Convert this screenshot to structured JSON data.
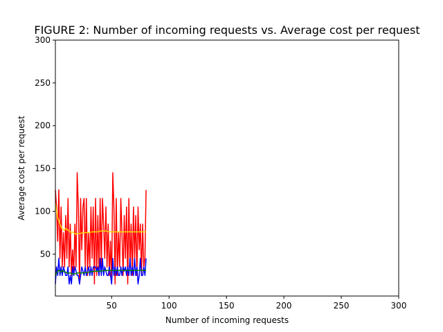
{
  "chart_data": {
    "type": "line",
    "title": "FIGURE 2: Number of incoming requests vs. Average cost per request",
    "xlabel": "Number of incoming requests",
    "ylabel": "Average cost per request",
    "xlim": [
      1,
      300
    ],
    "ylim": [
      1,
      300
    ],
    "xticks": [
      50,
      100,
      150,
      200,
      250,
      300
    ],
    "yticks": [
      50,
      100,
      150,
      200,
      250,
      300
    ],
    "grid": false,
    "legend": "none",
    "series": [
      {
        "color": "#ff0000",
        "x": [
          1,
          2,
          3,
          4,
          5,
          6,
          7,
          8,
          9,
          10,
          11,
          12,
          13,
          14,
          15,
          16,
          17,
          18,
          19,
          20,
          21,
          22,
          23,
          24,
          25,
          26,
          27,
          28,
          29,
          30,
          31,
          32,
          33,
          34,
          35,
          36,
          37,
          38,
          39,
          40,
          41,
          42,
          43,
          44,
          45,
          46,
          47,
          48,
          49,
          50,
          51,
          52,
          53,
          54,
          55,
          56,
          57,
          58,
          59,
          60,
          61,
          62,
          63,
          64,
          65,
          66,
          67,
          68,
          69,
          70,
          71,
          72,
          73,
          74,
          75,
          76,
          77,
          78,
          79,
          80
        ],
        "y": [
          125,
          105,
          65,
          125,
          45,
          105,
          35,
          75,
          35,
          95,
          45,
          115,
          35,
          85,
          25,
          55,
          25,
          85,
          35,
          145,
          105,
          15,
          115,
          55,
          105,
          115,
          35,
          115,
          25,
          75,
          35,
          105,
          45,
          105,
          15,
          115,
          25,
          95,
          25,
          115,
          35,
          115,
          85,
          45,
          105,
          35,
          85,
          25,
          65,
          15,
          145,
          105,
          15,
          115,
          25,
          75,
          35,
          115,
          75,
          25,
          95,
          45,
          105,
          15,
          115,
          35,
          85,
          25,
          105,
          45,
          95,
          25,
          105,
          55,
          85,
          25,
          85,
          35,
          45,
          125
        ]
      },
      {
        "color": "#0000ff",
        "x": [
          1,
          2,
          3,
          4,
          5,
          6,
          7,
          8,
          9,
          10,
          11,
          12,
          13,
          14,
          15,
          16,
          17,
          18,
          19,
          20,
          21,
          22,
          23,
          24,
          25,
          26,
          27,
          28,
          29,
          30,
          31,
          32,
          33,
          34,
          35,
          36,
          37,
          38,
          39,
          40,
          41,
          42,
          43,
          44,
          45,
          46,
          47,
          48,
          49,
          50,
          51,
          52,
          53,
          54,
          55,
          56,
          57,
          58,
          59,
          60,
          61,
          62,
          63,
          64,
          65,
          66,
          67,
          68,
          69,
          70,
          71,
          72,
          73,
          74,
          75,
          76,
          77,
          78,
          79,
          80
        ],
        "y": [
          15,
          35,
          25,
          45,
          25,
          35,
          25,
          35,
          30,
          25,
          25,
          35,
          15,
          25,
          15,
          35,
          25,
          35,
          30,
          25,
          25,
          15,
          25,
          35,
          30,
          25,
          35,
          25,
          30,
          35,
          25,
          35,
          25,
          35,
          35,
          35,
          30,
          35,
          25,
          45,
          25,
          45,
          25,
          35,
          30,
          25,
          25,
          35,
          25,
          15,
          45,
          25,
          35,
          25,
          35,
          25,
          25,
          35,
          25,
          35,
          30,
          35,
          25,
          35,
          25,
          45,
          25,
          35,
          25,
          45,
          25,
          35,
          15,
          25,
          45,
          25,
          25,
          35,
          25,
          45
        ]
      },
      {
        "color": "#008000",
        "x": [
          1,
          2,
          3,
          4,
          5,
          6,
          7,
          8,
          9,
          10,
          11,
          12,
          13,
          14,
          15,
          16,
          17,
          18,
          19,
          20,
          25,
          30,
          35,
          40,
          45,
          50,
          55,
          60,
          65,
          70,
          75,
          80
        ],
        "y": [
          25,
          28,
          30,
          31,
          30,
          29,
          31,
          30,
          29,
          29,
          28,
          28,
          28,
          28,
          27,
          27,
          27,
          27,
          27,
          28,
          28,
          29,
          30,
          30,
          31,
          31,
          31,
          31,
          31,
          31,
          31,
          31
        ]
      },
      {
        "color": "#ffd700",
        "x": [
          1,
          2,
          3,
          4,
          5,
          6,
          7,
          8,
          9,
          10,
          11,
          12,
          13,
          14,
          15,
          16,
          17,
          18,
          19,
          20,
          22,
          25,
          28,
          30,
          33,
          35,
          38,
          40,
          43,
          45,
          48,
          50,
          53,
          55,
          58,
          60,
          63,
          65,
          68,
          70,
          73,
          75,
          78,
          80
        ],
        "y": [
          110,
          100,
          92,
          90,
          85,
          82,
          79,
          79,
          78,
          80,
          79,
          78,
          77,
          76,
          75,
          76,
          75,
          74,
          73,
          74,
          74,
          75,
          75,
          75,
          76,
          76,
          76,
          77,
          77,
          77,
          76,
          76,
          76,
          76,
          76,
          76,
          76,
          76,
          76,
          76,
          76,
          76,
          76,
          76
        ]
      }
    ]
  }
}
